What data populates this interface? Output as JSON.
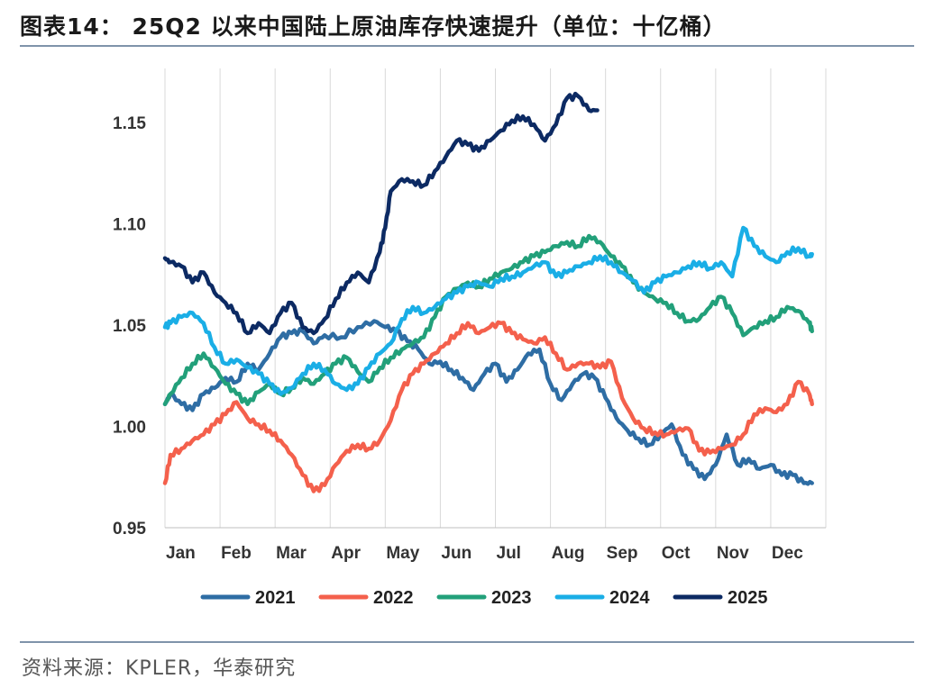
{
  "title": "图表14：  25Q2 以来中国陆上原油库存快速提升（单位：十亿桶）",
  "source": "资料来源：KPLER，华泰研究",
  "chart_data": {
    "type": "line",
    "title": "图表14：  25Q2 以来中国陆上原油库存快速提升（单位：十亿桶）",
    "xlabel": "",
    "ylabel": "",
    "unit": "十亿桶",
    "ylim": [
      0.95,
      1.17
    ],
    "yticks": [
      0.95,
      1.0,
      1.05,
      1.1,
      1.15
    ],
    "ytick_labels": [
      "0.95",
      "1.00",
      "1.05",
      "1.10",
      "1.15"
    ],
    "x_tick_labels": [
      "Jan",
      "Feb",
      "Mar",
      "Apr",
      "May",
      "Jun",
      "Jul",
      "Aug",
      "Sep",
      "Oct",
      "Nov",
      "Dec"
    ],
    "grid": "vertical",
    "legend": "bottom",
    "x_unit": "month (1=Jan ... 12=Dec)",
    "series": [
      {
        "name": "2021",
        "color": "#2e6da4",
        "x": [
          1.0,
          1.1,
          1.3,
          1.5,
          1.7,
          1.9,
          2.1,
          2.3,
          2.5,
          2.7,
          2.9,
          3.1,
          3.3,
          3.5,
          3.7,
          3.9,
          4.2,
          4.5,
          4.8,
          5.0,
          5.2,
          5.4,
          5.6,
          5.8,
          6.0,
          6.2,
          6.4,
          6.6,
          6.8,
          7.0,
          7.2,
          7.4,
          7.6,
          7.8,
          8.0,
          8.2,
          8.4,
          8.6,
          8.8,
          9.0,
          9.2,
          9.4,
          9.6,
          9.8,
          10.0,
          10.2,
          10.4,
          10.6,
          10.8,
          11.0,
          11.2,
          11.4,
          11.6,
          11.8,
          12.0,
          12.2,
          12.4,
          12.6,
          12.75
        ],
        "values": [
          1.011,
          1.016,
          1.011,
          1.008,
          1.016,
          1.019,
          1.024,
          1.022,
          1.031,
          1.028,
          1.036,
          1.044,
          1.046,
          1.047,
          1.041,
          1.045,
          1.044,
          1.049,
          1.052,
          1.049,
          1.047,
          1.042,
          1.038,
          1.031,
          1.032,
          1.028,
          1.024,
          1.018,
          1.026,
          1.031,
          1.022,
          1.028,
          1.036,
          1.038,
          1.021,
          1.013,
          1.021,
          1.026,
          1.024,
          1.014,
          1.004,
          0.998,
          0.994,
          0.991,
          0.996,
          1.001,
          0.986,
          0.979,
          0.974,
          0.981,
          0.996,
          0.981,
          0.984,
          0.979,
          0.981,
          0.976,
          0.976,
          0.972,
          0.972
        ]
      },
      {
        "name": "2022",
        "color": "#f4604c",
        "x": [
          1.0,
          1.1,
          1.3,
          1.5,
          1.7,
          1.9,
          2.1,
          2.3,
          2.5,
          2.7,
          2.9,
          3.1,
          3.3,
          3.5,
          3.7,
          3.9,
          4.1,
          4.3,
          4.5,
          4.7,
          4.9,
          5.1,
          5.3,
          5.5,
          5.7,
          5.9,
          6.1,
          6.3,
          6.5,
          6.7,
          6.9,
          7.1,
          7.3,
          7.5,
          7.7,
          7.9,
          8.1,
          8.3,
          8.5,
          8.7,
          8.9,
          9.1,
          9.3,
          9.5,
          9.7,
          9.9,
          10.1,
          10.3,
          10.5,
          10.7,
          10.9,
          11.1,
          11.3,
          11.5,
          11.7,
          11.9,
          12.1,
          12.3,
          12.5,
          12.7,
          12.75
        ],
        "values": [
          0.972,
          0.986,
          0.989,
          0.993,
          0.996,
          1.001,
          1.006,
          1.012,
          1.004,
          1.001,
          0.998,
          0.993,
          0.986,
          0.976,
          0.968,
          0.971,
          0.981,
          0.988,
          0.991,
          0.989,
          0.993,
          1.003,
          1.018,
          1.026,
          1.031,
          1.036,
          1.041,
          1.046,
          1.051,
          1.046,
          1.049,
          1.051,
          1.046,
          1.043,
          1.041,
          1.044,
          1.036,
          1.028,
          1.031,
          1.031,
          1.029,
          1.032,
          1.014,
          1.004,
          0.999,
          0.997,
          0.996,
          0.998,
          0.999,
          0.988,
          0.987,
          0.989,
          0.991,
          0.996,
          1.006,
          1.009,
          1.007,
          1.011,
          1.022,
          1.016,
          1.011
        ]
      },
      {
        "name": "2023",
        "color": "#22a07a",
        "x": [
          1.0,
          1.1,
          1.3,
          1.5,
          1.7,
          1.9,
          2.1,
          2.3,
          2.5,
          2.7,
          2.9,
          3.1,
          3.3,
          3.5,
          3.7,
          3.9,
          4.1,
          4.3,
          4.5,
          4.7,
          4.9,
          5.1,
          5.3,
          5.5,
          5.7,
          5.9,
          6.1,
          6.3,
          6.5,
          6.7,
          6.9,
          7.1,
          7.3,
          7.5,
          7.7,
          7.9,
          8.1,
          8.3,
          8.5,
          8.7,
          8.9,
          9.1,
          9.3,
          9.5,
          9.7,
          9.9,
          10.1,
          10.3,
          10.5,
          10.7,
          10.9,
          11.1,
          11.3,
          11.5,
          11.7,
          11.9,
          12.1,
          12.3,
          12.5,
          12.7,
          12.75
        ],
        "values": [
          1.011,
          1.016,
          1.024,
          1.031,
          1.036,
          1.029,
          1.021,
          1.016,
          1.011,
          1.017,
          1.021,
          1.016,
          1.019,
          1.024,
          1.021,
          1.026,
          1.031,
          1.034,
          1.027,
          1.022,
          1.029,
          1.034,
          1.038,
          1.041,
          1.044,
          1.054,
          1.064,
          1.068,
          1.071,
          1.069,
          1.073,
          1.076,
          1.078,
          1.081,
          1.084,
          1.086,
          1.089,
          1.091,
          1.089,
          1.094,
          1.091,
          1.084,
          1.079,
          1.071,
          1.066,
          1.063,
          1.061,
          1.056,
          1.052,
          1.053,
          1.059,
          1.064,
          1.056,
          1.045,
          1.049,
          1.052,
          1.054,
          1.059,
          1.057,
          1.051,
          1.047
        ]
      },
      {
        "name": "2024",
        "color": "#1aaee6",
        "x": [
          1.0,
          1.1,
          1.3,
          1.5,
          1.7,
          1.9,
          2.1,
          2.3,
          2.5,
          2.7,
          2.9,
          3.1,
          3.3,
          3.5,
          3.7,
          3.9,
          4.1,
          4.3,
          4.5,
          4.7,
          4.9,
          5.1,
          5.3,
          5.5,
          5.7,
          5.9,
          6.1,
          6.3,
          6.5,
          6.7,
          6.9,
          7.1,
          7.3,
          7.5,
          7.7,
          7.9,
          8.1,
          8.3,
          8.5,
          8.7,
          8.9,
          9.1,
          9.3,
          9.5,
          9.7,
          9.9,
          10.1,
          10.3,
          10.5,
          10.7,
          10.9,
          11.1,
          11.3,
          11.5,
          11.7,
          11.9,
          12.1,
          12.3,
          12.5,
          12.7,
          12.75
        ],
        "values": [
          1.049,
          1.051,
          1.054,
          1.056,
          1.051,
          1.039,
          1.031,
          1.033,
          1.029,
          1.026,
          1.021,
          1.016,
          1.019,
          1.026,
          1.031,
          1.028,
          1.021,
          1.018,
          1.021,
          1.029,
          1.036,
          1.041,
          1.053,
          1.059,
          1.056,
          1.059,
          1.063,
          1.066,
          1.069,
          1.071,
          1.069,
          1.073,
          1.074,
          1.076,
          1.079,
          1.081,
          1.074,
          1.076,
          1.079,
          1.081,
          1.084,
          1.081,
          1.076,
          1.072,
          1.066,
          1.071,
          1.074,
          1.076,
          1.079,
          1.081,
          1.078,
          1.081,
          1.074,
          1.098,
          1.089,
          1.084,
          1.081,
          1.086,
          1.088,
          1.084,
          1.085
        ]
      },
      {
        "name": "2025",
        "color": "#0c2a63",
        "x": [
          1.0,
          1.1,
          1.3,
          1.5,
          1.7,
          1.9,
          2.1,
          2.3,
          2.5,
          2.7,
          2.9,
          3.1,
          3.3,
          3.5,
          3.7,
          3.9,
          4.1,
          4.3,
          4.5,
          4.7,
          4.9,
          5.0,
          5.1,
          5.3,
          5.5,
          5.7,
          5.9,
          6.1,
          6.3,
          6.5,
          6.7,
          6.9,
          7.1,
          7.3,
          7.5,
          7.7,
          7.9,
          8.1,
          8.3,
          8.5,
          8.7,
          8.85
        ],
        "values": [
          1.083,
          1.081,
          1.079,
          1.071,
          1.076,
          1.066,
          1.061,
          1.056,
          1.046,
          1.051,
          1.046,
          1.056,
          1.061,
          1.049,
          1.046,
          1.053,
          1.063,
          1.071,
          1.076,
          1.071,
          1.086,
          1.098,
          1.116,
          1.122,
          1.121,
          1.119,
          1.126,
          1.133,
          1.141,
          1.139,
          1.136,
          1.141,
          1.146,
          1.151,
          1.153,
          1.149,
          1.141,
          1.149,
          1.162,
          1.163,
          1.156,
          1.156
        ]
      }
    ]
  }
}
